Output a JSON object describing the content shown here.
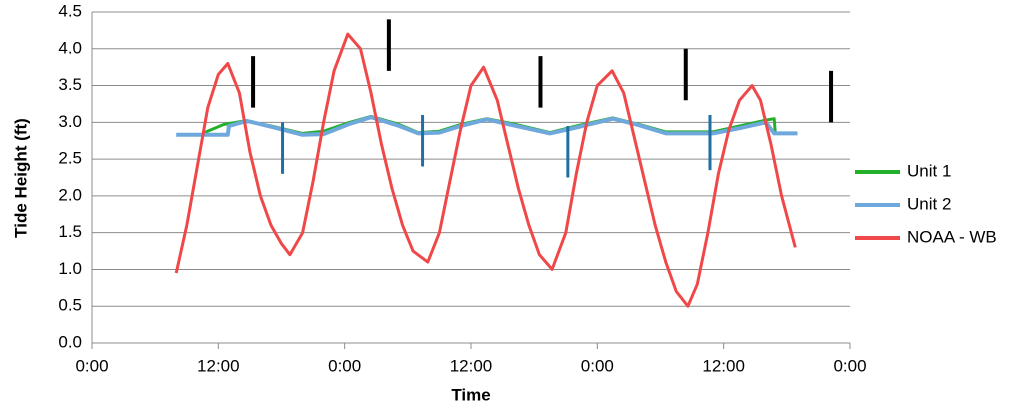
{
  "chart_data": {
    "type": "line",
    "x_label": "Time",
    "y_label": "Tide Height (ft)",
    "xlim": [
      0,
      72
    ],
    "xticks": [
      {
        "value": 0,
        "label": "0:00"
      },
      {
        "value": 12,
        "label": "12:00"
      },
      {
        "value": 24,
        "label": "0:00"
      },
      {
        "value": 36,
        "label": "12:00"
      },
      {
        "value": 48,
        "label": "0:00"
      },
      {
        "value": 60,
        "label": "12:00"
      },
      {
        "value": 72,
        "label": "0:00"
      }
    ],
    "ylim": [
      0,
      4.5
    ],
    "yticks": [
      {
        "value": 0,
        "label": "0.0"
      },
      0.5,
      {
        "value": 1,
        "label": "1.0"
      },
      1.5,
      {
        "value": 2,
        "label": "2.0"
      },
      2.5,
      {
        "value": 3,
        "label": "3.0"
      },
      3.5,
      {
        "value": 4,
        "label": "4.0"
      },
      4.5
    ],
    "grid": true,
    "legend": "right",
    "series": [
      {
        "name": "Unit 1",
        "color": "#22b02a",
        "x": [
          10.5,
          12.5,
          14.5,
          17,
          20,
          22,
          24.5,
          26.5,
          29,
          31,
          33,
          35,
          37.5,
          40,
          43.5,
          46,
          49.5,
          52,
          54.5,
          59,
          61.5,
          64,
          64.8,
          64.9,
          67
        ],
        "values": [
          2.85,
          2.97,
          3.02,
          2.95,
          2.85,
          2.88,
          3.0,
          3.08,
          2.98,
          2.86,
          2.88,
          2.97,
          3.05,
          2.98,
          2.86,
          2.95,
          3.06,
          2.97,
          2.87,
          2.87,
          2.95,
          3.03,
          3.05,
          2.85,
          2.85
        ]
      },
      {
        "name": "Unit 2",
        "color": "#6fa8dc",
        "x": [
          8,
          12.9,
          13,
          14.7,
          17,
          20,
          22,
          24.5,
          26.5,
          29,
          31,
          33,
          35,
          37.5,
          40,
          43.5,
          46,
          49.5,
          52,
          54.5,
          59,
          61.5,
          64,
          64.8,
          67
        ],
        "values": [
          2.83,
          2.83,
          2.95,
          3.02,
          2.94,
          2.83,
          2.84,
          2.98,
          3.07,
          2.96,
          2.85,
          2.86,
          2.95,
          3.04,
          2.96,
          2.85,
          2.93,
          3.05,
          2.96,
          2.85,
          2.85,
          2.92,
          3.0,
          2.85,
          2.85
        ]
      },
      {
        "name": "NOAA - WB",
        "color": "#f04848",
        "x": [
          8,
          9,
          10,
          11,
          12,
          12.9,
          14,
          15,
          16,
          17,
          18,
          18.8,
          20,
          21,
          22,
          23,
          24.3,
          25.5,
          26.5,
          27.5,
          28.5,
          29.5,
          30.5,
          31.9,
          33,
          34,
          35,
          36,
          37.2,
          38.5,
          39.5,
          40.5,
          41.5,
          42.5,
          43.7,
          45,
          46,
          47,
          48,
          49.4,
          50.5,
          51.5,
          52.5,
          53.5,
          54.5,
          55.5,
          56.6,
          57.5,
          58.5,
          59.5,
          60.5,
          61.5,
          62.7,
          63.5,
          64.5,
          65.5,
          66.8
        ],
        "values": [
          0.95,
          1.6,
          2.4,
          3.2,
          3.65,
          3.8,
          3.4,
          2.6,
          2.0,
          1.6,
          1.35,
          1.2,
          1.5,
          2.2,
          3.0,
          3.7,
          4.2,
          4.0,
          3.4,
          2.7,
          2.1,
          1.6,
          1.25,
          1.1,
          1.5,
          2.2,
          2.9,
          3.5,
          3.75,
          3.3,
          2.7,
          2.1,
          1.6,
          1.2,
          1.0,
          1.5,
          2.3,
          3.0,
          3.5,
          3.7,
          3.4,
          2.8,
          2.2,
          1.6,
          1.1,
          0.7,
          0.5,
          0.8,
          1.5,
          2.3,
          2.9,
          3.3,
          3.5,
          3.3,
          2.7,
          2.0,
          1.3
        ]
      }
    ],
    "range_bars": [
      {
        "color": "#000000",
        "x": [
          15.3,
          28.2,
          42.6,
          56.4,
          70.2
        ],
        "low": [
          3.2,
          3.7,
          3.2,
          3.3,
          3.0
        ],
        "high": [
          3.9,
          4.4,
          3.9,
          4.0,
          3.7
        ]
      },
      {
        "color": "#1f6fa3",
        "x": [
          18.1,
          31.4,
          45.2,
          58.7
        ],
        "low": [
          2.3,
          2.4,
          2.25,
          2.35
        ],
        "high": [
          3.0,
          3.1,
          2.95,
          3.1
        ]
      }
    ]
  }
}
